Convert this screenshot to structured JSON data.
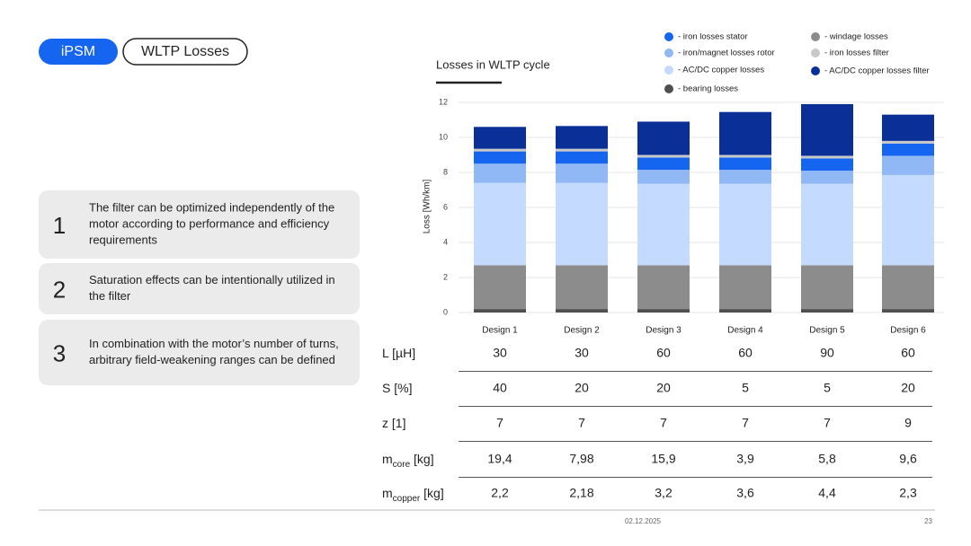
{
  "header": {
    "tag": "iPSM",
    "title": "WLTP Losses"
  },
  "points": [
    {
      "number": "1",
      "lines": [
        "The filter can be optimized independently of the",
        "motor according to performance and efficiency",
        "requirements"
      ]
    },
    {
      "number": "2",
      "lines": [
        "Saturation effects can be intentionally utilized in",
        "the filter"
      ]
    },
    {
      "number": "3",
      "lines": [
        "In combination with the motor’s number of turns,",
        "arbitrary field-weakening ranges can be defined"
      ]
    }
  ],
  "chart_data": {
    "type": "stacked_bar",
    "title": "Losses in WLTP cycle",
    "y_label": "Loss [Wh/km]",
    "categories": [
      "Design 1",
      "Design 2",
      "Design 3",
      "Design 4",
      "Design 5",
      "Design 6"
    ],
    "series": [
      {
        "name": "- bearing losses",
        "color": "#4f4f4f",
        "values": [
          0.2,
          0.2,
          0.2,
          0.2,
          0.2,
          0.2
        ]
      },
      {
        "name": "- windage losses",
        "color": "#8c8c8c",
        "values": [
          2.5,
          2.5,
          2.5,
          2.5,
          2.5,
          2.5
        ]
      },
      {
        "name": "- AC/DC copper losses",
        "color": "#c4dbff",
        "values": [
          4.7,
          4.7,
          4.65,
          4.65,
          4.65,
          5.15
        ]
      },
      {
        "name": "- iron/magnet losses rotor",
        "color": "#90b8f4",
        "values": [
          1.1,
          1.1,
          0.8,
          0.8,
          0.75,
          1.1
        ]
      },
      {
        "name": "- iron losses stator",
        "color": "#1565f0",
        "values": [
          0.7,
          0.7,
          0.7,
          0.7,
          0.7,
          0.7
        ]
      },
      {
        "name": "- iron losses filter",
        "color": "#c8c8c8",
        "values": [
          0.15,
          0.15,
          0.15,
          0.15,
          0.15,
          0.15
        ]
      },
      {
        "name": "- AC/DC copper losses filter",
        "color": "#0a3097",
        "values": [
          1.25,
          1.3,
          1.9,
          2.45,
          2.95,
          1.5
        ]
      }
    ],
    "ylim": [
      0,
      12
    ],
    "yticks": [
      0,
      2,
      4,
      6,
      8,
      10,
      12
    ],
    "grid": true
  },
  "table": {
    "rows": [
      {
        "label": "L [µH]",
        "values": [
          "30",
          "30",
          "60",
          "60",
          "90",
          "60"
        ]
      },
      {
        "label": "S [%]",
        "values": [
          "40",
          "20",
          "20",
          "5",
          "5",
          "20"
        ]
      },
      {
        "label": "z [1]",
        "values": [
          "7",
          "7",
          "7",
          "7",
          "7",
          "9"
        ]
      },
      {
        "label": "m",
        "sub": "core",
        "unit": " [kg]",
        "values": [
          "19,4",
          "7,98",
          "15,9",
          "3,9",
          "5,8",
          "9,6"
        ]
      },
      {
        "label": "m",
        "sub": "copper",
        "unit": " [kg]",
        "values": [
          "2,2",
          "2,18",
          "3,2",
          "3,6",
          "4,4",
          "2,3"
        ]
      }
    ]
  },
  "footer": {
    "date": "02.12.2025",
    "page": "23"
  }
}
